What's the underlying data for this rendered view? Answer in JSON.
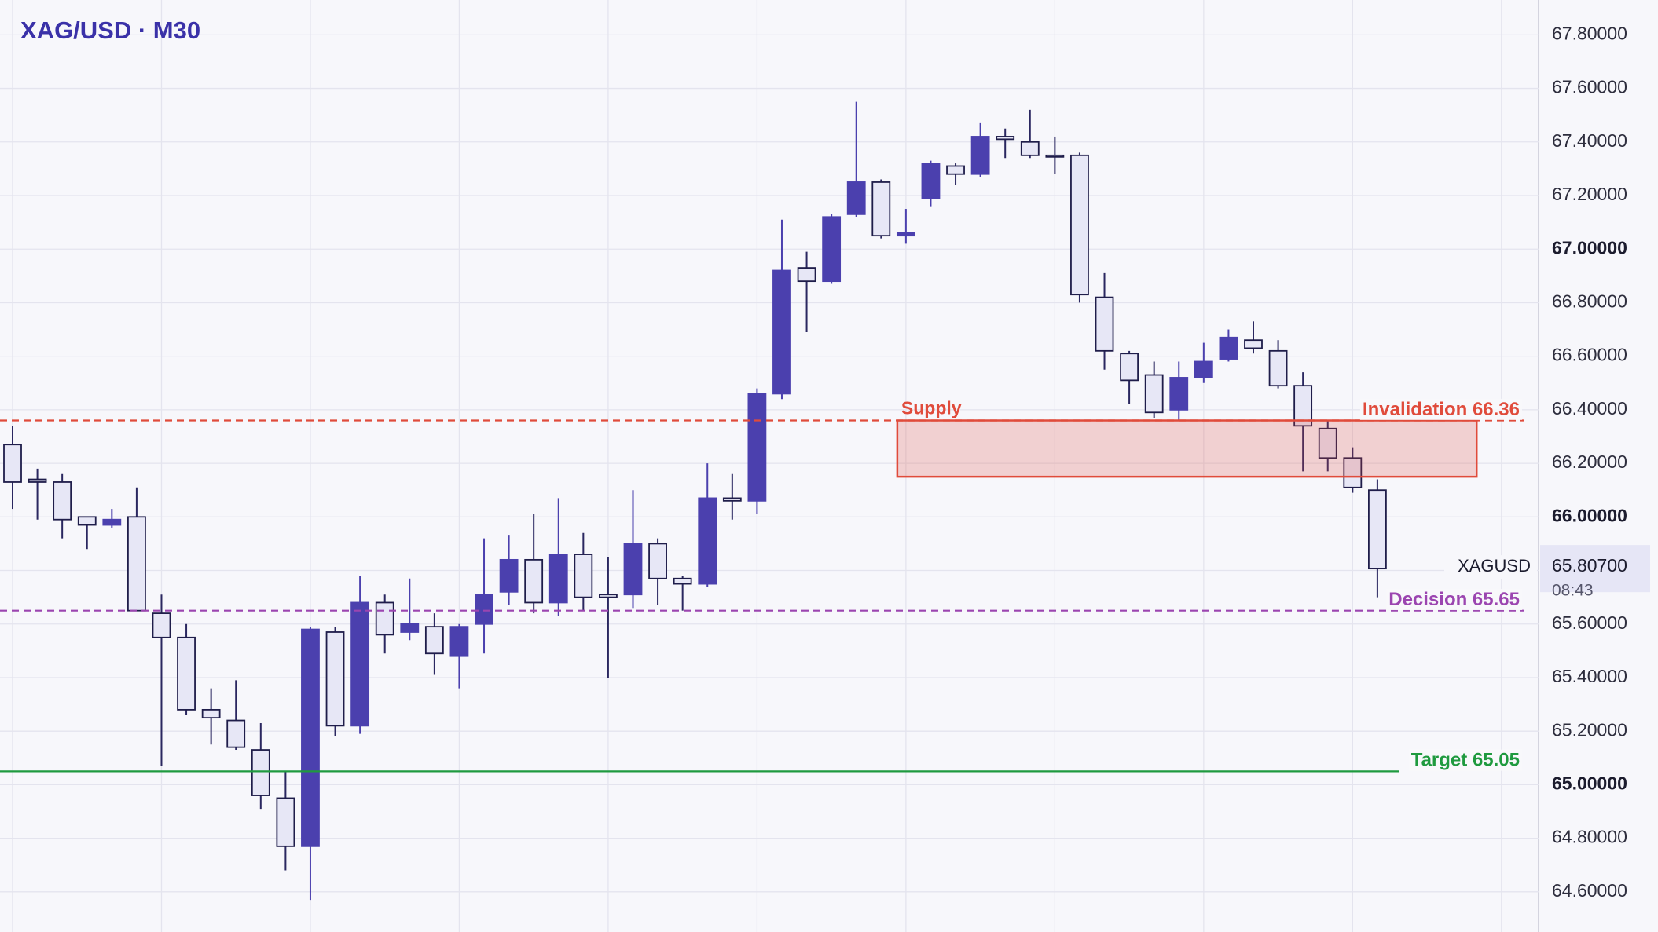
{
  "chart_data": {
    "type": "candlestick",
    "title": "XAG/USD · M30",
    "open": [
      66.27,
      66.14,
      66.13,
      66.0,
      65.97,
      66.0,
      65.64,
      65.55,
      65.28,
      65.24,
      65.13,
      64.95,
      64.77,
      65.57,
      65.22,
      65.68,
      65.57,
      65.59,
      65.48,
      65.6,
      65.72,
      65.84,
      65.68,
      65.86,
      65.71,
      65.71,
      65.9,
      65.77,
      65.75,
      66.07,
      66.06,
      66.46,
      66.93,
      66.88,
      67.13,
      67.25,
      67.05,
      67.19,
      67.31,
      67.28,
      67.42,
      67.4,
      67.35,
      67.35,
      66.82,
      66.61,
      66.53,
      66.4,
      66.52,
      66.59,
      66.66,
      66.62,
      66.49,
      66.33,
      66.22,
      66.1
    ],
    "high": [
      66.34,
      66.18,
      66.16,
      66.0,
      66.03,
      66.11,
      65.71,
      65.6,
      65.36,
      65.39,
      65.23,
      65.05,
      65.59,
      65.59,
      65.78,
      65.71,
      65.77,
      65.64,
      65.6,
      65.92,
      65.93,
      66.01,
      66.07,
      65.94,
      65.85,
      66.1,
      65.92,
      65.78,
      66.2,
      66.16,
      66.48,
      67.11,
      66.99,
      67.13,
      67.55,
      67.26,
      67.15,
      67.33,
      67.32,
      67.47,
      67.45,
      67.52,
      67.42,
      67.36,
      66.91,
      66.62,
      66.58,
      66.58,
      66.65,
      66.7,
      66.73,
      66.66,
      66.54,
      66.36,
      66.26,
      66.14
    ],
    "low": [
      66.03,
      65.99,
      65.92,
      65.88,
      65.96,
      65.65,
      65.07,
      65.26,
      65.15,
      65.13,
      64.91,
      64.68,
      64.57,
      65.18,
      65.19,
      65.49,
      65.54,
      65.41,
      65.36,
      65.49,
      65.67,
      65.64,
      65.63,
      65.65,
      65.4,
      65.66,
      65.67,
      65.65,
      65.74,
      65.99,
      66.01,
      66.44,
      66.69,
      66.87,
      67.12,
      67.04,
      67.02,
      67.16,
      67.24,
      67.27,
      67.34,
      67.34,
      67.28,
      66.8,
      66.55,
      66.42,
      66.37,
      66.36,
      66.5,
      66.58,
      66.61,
      66.48,
      66.17,
      66.17,
      66.09,
      65.7
    ],
    "close": [
      66.13,
      66.13,
      65.99,
      65.97,
      65.99,
      65.65,
      65.55,
      65.28,
      65.25,
      65.14,
      64.96,
      64.77,
      65.58,
      65.22,
      65.68,
      65.56,
      65.6,
      65.49,
      65.59,
      65.71,
      65.84,
      65.68,
      65.86,
      65.7,
      65.7,
      65.9,
      65.77,
      65.75,
      66.07,
      66.06,
      66.46,
      66.92,
      66.88,
      67.12,
      67.25,
      67.05,
      67.06,
      67.32,
      67.28,
      67.42,
      67.41,
      67.35,
      67.35,
      66.83,
      66.62,
      66.51,
      66.39,
      66.52,
      66.58,
      66.67,
      66.63,
      66.49,
      66.34,
      66.22,
      66.11,
      65.807
    ],
    "up_color": "#4b40ae",
    "down_color": "#e7e7f6",
    "ylim": [
      64.45,
      67.93
    ],
    "yticks": [
      {
        "value": 64.6,
        "label": "64.60000"
      },
      {
        "value": 64.8,
        "label": "64.80000"
      },
      {
        "value": 65.0,
        "label": "65.00000"
      },
      {
        "value": 65.2,
        "label": "65.20000"
      },
      {
        "value": 65.4,
        "label": "65.40000"
      },
      {
        "value": 65.6,
        "label": "65.60000"
      },
      {
        "value": 65.8,
        "label": "65.80000"
      },
      {
        "value": 66.0,
        "label": "66.00000"
      },
      {
        "value": 66.2,
        "label": "66.20000"
      },
      {
        "value": 66.4,
        "label": "66.40000"
      },
      {
        "value": 66.6,
        "label": "66.60000"
      },
      {
        "value": 66.8,
        "label": "66.80000"
      },
      {
        "value": 67.0,
        "label": "67.00000"
      },
      {
        "value": 67.2,
        "label": "67.20000"
      },
      {
        "value": 67.4,
        "label": "67.40000"
      },
      {
        "value": 67.6,
        "label": "67.60000"
      },
      {
        "value": 67.8,
        "label": "67.80000"
      }
    ],
    "grid": true,
    "levels": [
      {
        "label": "Invalidation 66.36",
        "value": 66.36,
        "color": "#e04b3b",
        "style": "dashed"
      },
      {
        "label": "Decision 65.65",
        "value": 65.65,
        "color": "#9b45b0",
        "style": "dashed"
      },
      {
        "label": "Target 65.05",
        "value": 65.05,
        "color": "#1f9a3f",
        "style": "solid"
      }
    ],
    "zone": {
      "label": "Supply",
      "top": 66.36,
      "bottom": 66.15,
      "color": "#e04b3b"
    },
    "last": {
      "symbol": "XAGUSD",
      "price": {
        "value": 65.807,
        "label": "65.80700"
      },
      "countdown": "08:43"
    }
  }
}
